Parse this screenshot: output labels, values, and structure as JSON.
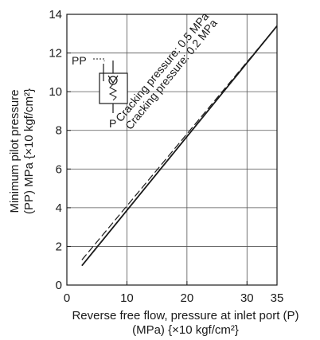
{
  "chart_data": {
    "type": "line",
    "xlabel_line1": "Reverse free flow, pressure at inlet port (P)",
    "xlabel_line2": "(MPa) {×10 kgf/cm²}",
    "ylabel_line1": "Minimum pilot pressure",
    "ylabel_line2": "(PP) MPa {×10 kgf/cm²}",
    "xlim": [
      0,
      35
    ],
    "ylim": [
      0,
      14
    ],
    "x_ticks": [
      0,
      10,
      20,
      30,
      35
    ],
    "y_ticks": [
      0,
      2,
      4,
      6,
      8,
      10,
      12,
      14
    ],
    "grid": true,
    "series": [
      {
        "name": "Cracking pressure: 0.5 MPa",
        "style": "dashed",
        "x": [
          2.5,
          35
        ],
        "y": [
          1.3,
          13.4
        ]
      },
      {
        "name": "Cracking pressure: 0.2 MPa",
        "style": "solid",
        "x": [
          2.5,
          35
        ],
        "y": [
          1.0,
          13.4
        ]
      }
    ]
  },
  "symbol": {
    "pp_label": "PP",
    "p_label": "P"
  }
}
